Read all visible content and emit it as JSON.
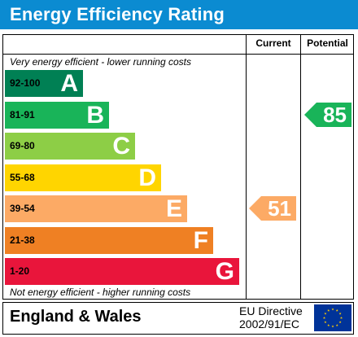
{
  "title": "Energy Efficiency Rating",
  "columns": {
    "current": "Current",
    "potential": "Potential"
  },
  "notes": {
    "top": "Very energy efficient - lower running costs",
    "bottom": "Not energy efficient - higher running costs"
  },
  "bands": [
    {
      "range": "92-100",
      "letter": "A",
      "color": "#008054"
    },
    {
      "range": "81-91",
      "letter": "B",
      "color": "#19b459"
    },
    {
      "range": "69-80",
      "letter": "C",
      "color": "#8dce46"
    },
    {
      "range": "55-68",
      "letter": "D",
      "color": "#ffd500"
    },
    {
      "range": "39-54",
      "letter": "E",
      "color": "#fcaa65"
    },
    {
      "range": "21-38",
      "letter": "F",
      "color": "#ef8023"
    },
    {
      "range": "1-20",
      "letter": "G",
      "color": "#e9153b"
    }
  ],
  "ratings": {
    "current": {
      "value": "51",
      "band": "E",
      "color": "#fcaa65"
    },
    "potential": {
      "value": "85",
      "band": "B",
      "color": "#19b459"
    }
  },
  "footer": {
    "region": "England & Wales",
    "directive_line1": "EU Directive",
    "directive_line2": "2002/91/EC",
    "flag_blue": "#003399",
    "flag_star": "#ffcc00"
  }
}
